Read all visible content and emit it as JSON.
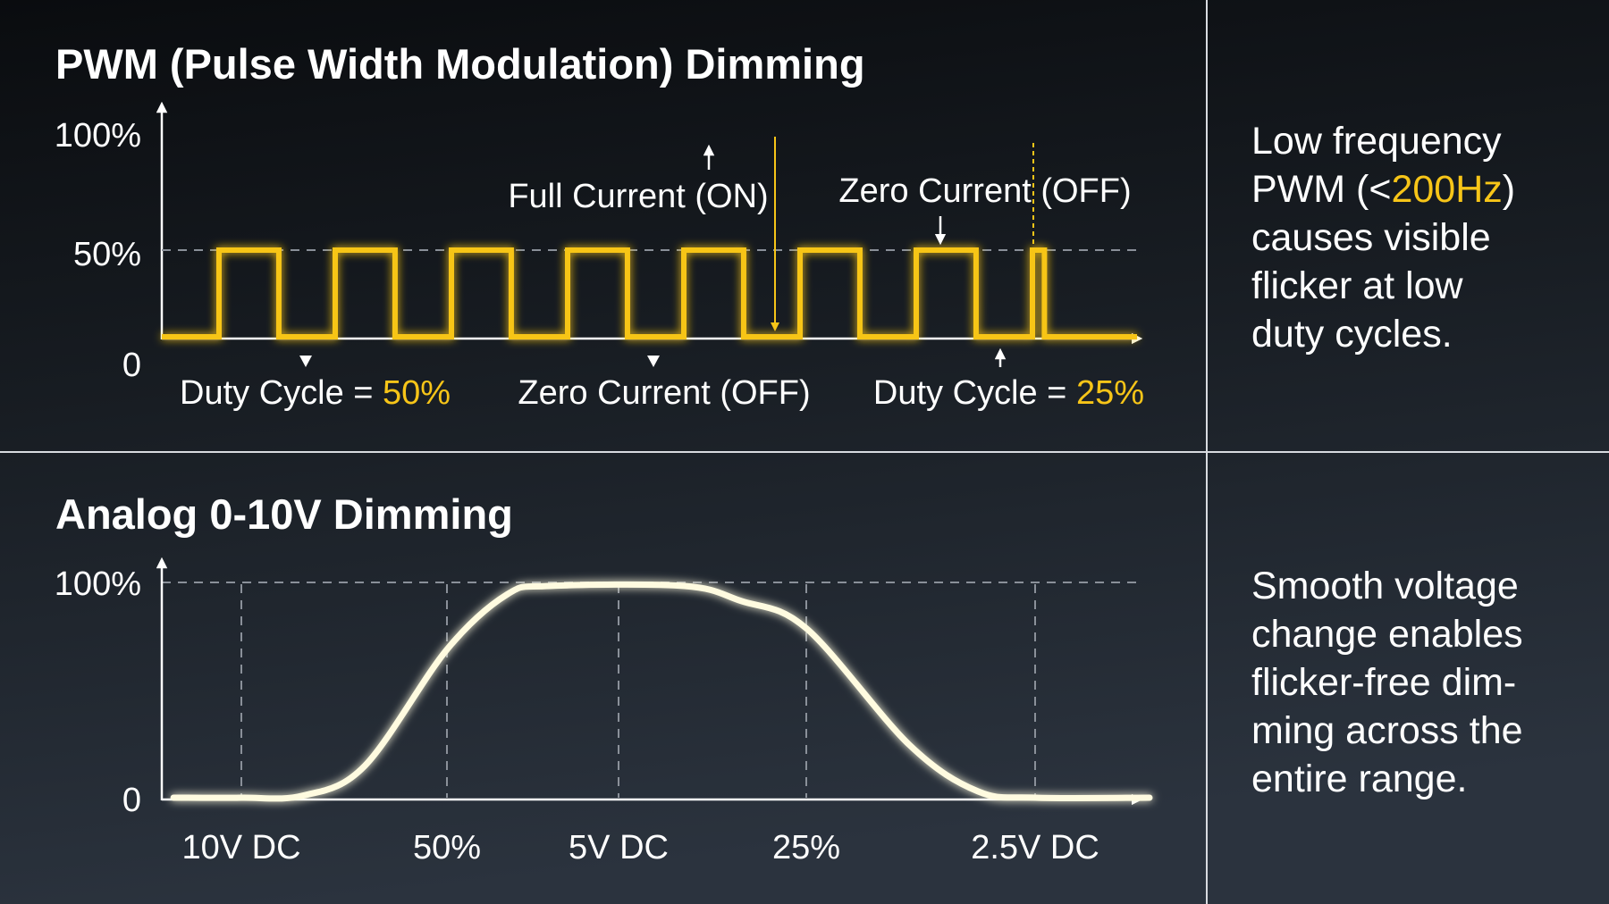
{
  "colors": {
    "accent": "#f7c518",
    "text": "#ffffff",
    "background_top": "#0a0c0f",
    "background_bottom": "#2b333e",
    "curve": "#fffbe0"
  },
  "pwm": {
    "title": "PWM (Pulse Width Modulation) Dimming",
    "y_ticks": [
      "100%",
      "50%",
      "0"
    ],
    "annotations": {
      "full_current": "Full Current (ON)",
      "zero_current_top": "Zero Current (OFF)",
      "duty_50_prefix": "Duty Cycle = ",
      "duty_50_value": "50%",
      "zero_current_bottom": "Zero Current (OFF)",
      "duty_25_prefix": "Duty Cycle = ",
      "duty_25_value": "25%"
    },
    "side_text": {
      "line1": "Low frequency",
      "line2_prefix": "PWM (<",
      "line2_highlight": "200Hz",
      "line2_suffix": ")",
      "line3": "causes visible",
      "line4": "flicker at low",
      "line5": "duty cycles."
    }
  },
  "analog": {
    "title": "Analog 0-10V Dimming",
    "y_ticks": [
      "100%",
      "0"
    ],
    "x_labels": [
      "10V DC",
      "50%",
      "5V DC",
      "25%",
      "2.5V DC"
    ],
    "side_text": {
      "line1": "Smooth voltage",
      "line2": "change enables",
      "line3": "flicker-free dim-",
      "line4": "ming across the",
      "line5": "entire range."
    }
  },
  "chart_data": [
    {
      "type": "line",
      "title": "PWM (Pulse Width Modulation) Dimming",
      "ylim": [
        0,
        100
      ],
      "y_ticks": [
        "100%",
        "50%",
        "0"
      ],
      "reference_lines": [
        {
          "level": 100,
          "style": "solid",
          "label": "Full Current (ON)"
        },
        {
          "level": 50,
          "style": "dashed"
        }
      ],
      "series": [
        {
          "pulse_level": 50,
          "base_level": 0,
          "pulse_duty_cycles": [
            50,
            50,
            50,
            50,
            50,
            50,
            50,
            10
          ]
        }
      ]
    },
    {
      "type": "line",
      "title": "Analog 0-10V Dimming",
      "ylim": [
        0,
        100
      ],
      "categories": [
        "10V DC",
        "50%",
        "5V DC",
        "25%",
        "2.5V DC"
      ],
      "series": [
        {
          "points": [
            [
              -0.33,
              0
            ],
            [
              0,
              0
            ],
            [
              0.3,
              1
            ],
            [
              0.6,
              15
            ],
            [
              1,
              70
            ],
            [
              1.35,
              96
            ],
            [
              1.6,
              100
            ],
            [
              2.35,
              100
            ],
            [
              2.65,
              93
            ],
            [
              3,
              80
            ],
            [
              3.45,
              25
            ],
            [
              3.75,
              3
            ],
            [
              4,
              0
            ],
            [
              4.5,
              0
            ]
          ]
        }
      ]
    }
  ]
}
